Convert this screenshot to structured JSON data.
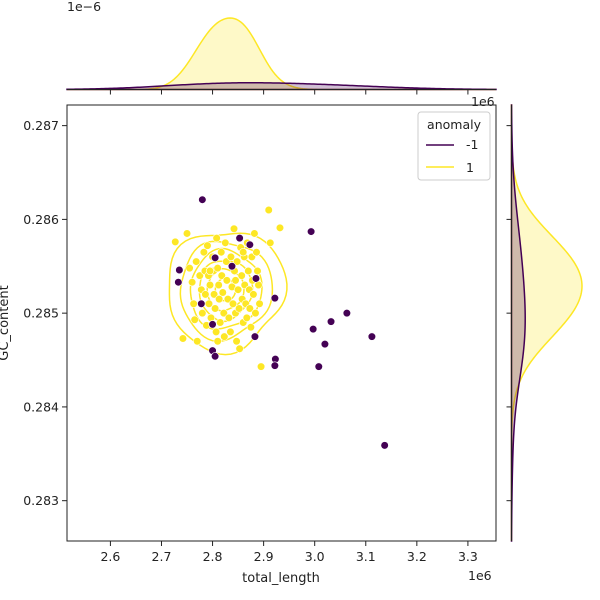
{
  "chart_data": {
    "type": "scatter",
    "xlabel": "total_length",
    "ylabel": "GC_content",
    "x_offset_label": "1e6",
    "y_offset_label": "",
    "top_marginal_offset_label": "1e−6",
    "right_marginal_offset_label": "1e6",
    "xlim": [
      2.515,
      3.355
    ],
    "ylim": [
      0.28257,
      0.28722
    ],
    "x_ticks": [
      "2.6",
      "2.7",
      "2.8",
      "2.9",
      "3.0",
      "3.1",
      "3.2",
      "3.3"
    ],
    "x_tick_values": [
      2.6,
      2.7,
      2.8,
      2.9,
      3.0,
      3.1,
      3.2,
      3.3
    ],
    "y_ticks": [
      "0.283",
      "0.284",
      "0.285",
      "0.286",
      "0.287"
    ],
    "y_tick_values": [
      0.283,
      0.284,
      0.285,
      0.286,
      0.287
    ],
    "grid": false,
    "legend": {
      "title": "anomaly",
      "placement": "top-right",
      "entries": [
        {
          "label": "-1",
          "color": "#440154"
        },
        {
          "label": "1",
          "color": "#fde725"
        }
      ]
    },
    "series": [
      {
        "name": "-1",
        "color": "#440154",
        "points": [
          [
            2.78,
            0.28621
          ],
          [
            2.735,
            0.28546
          ],
          [
            2.733,
            0.28533
          ],
          [
            2.778,
            0.2851
          ],
          [
            2.8,
            0.28488
          ],
          [
            2.8,
            0.2846
          ],
          [
            2.805,
            0.28454
          ],
          [
            2.805,
            0.28559
          ],
          [
            2.838,
            0.2855
          ],
          [
            2.853,
            0.2858
          ],
          [
            2.873,
            0.28573
          ],
          [
            2.885,
            0.28537
          ],
          [
            2.883,
            0.28475
          ],
          [
            2.922,
            0.28516
          ],
          [
            2.923,
            0.28451
          ],
          [
            2.922,
            0.28444
          ],
          [
            2.993,
            0.28587
          ],
          [
            2.997,
            0.28483
          ],
          [
            3.008,
            0.28443
          ],
          [
            3.02,
            0.28467
          ],
          [
            3.032,
            0.28491
          ],
          [
            3.063,
            0.285
          ],
          [
            3.112,
            0.28475
          ],
          [
            3.137,
            0.28359
          ]
        ]
      },
      {
        "name": "1",
        "color": "#fde725",
        "points": [
          [
            2.727,
            0.28576
          ],
          [
            2.742,
            0.28473
          ],
          [
            2.75,
            0.28585
          ],
          [
            2.755,
            0.28548
          ],
          [
            2.76,
            0.28533
          ],
          [
            2.763,
            0.2851
          ],
          [
            2.765,
            0.28493
          ],
          [
            2.768,
            0.28555
          ],
          [
            2.77,
            0.2847
          ],
          [
            2.775,
            0.2854
          ],
          [
            2.778,
            0.28525
          ],
          [
            2.78,
            0.285
          ],
          [
            2.783,
            0.28565
          ],
          [
            2.785,
            0.28545
          ],
          [
            2.786,
            0.2852
          ],
          [
            2.788,
            0.28487
          ],
          [
            2.79,
            0.28572
          ],
          [
            2.792,
            0.2854
          ],
          [
            2.793,
            0.2851
          ],
          [
            2.795,
            0.2853
          ],
          [
            2.797,
            0.28495
          ],
          [
            2.8,
            0.2856
          ],
          [
            2.802,
            0.28545
          ],
          [
            2.803,
            0.2852
          ],
          [
            2.805,
            0.28505
          ],
          [
            2.807,
            0.2848
          ],
          [
            2.808,
            0.2858
          ],
          [
            2.81,
            0.28548
          ],
          [
            2.812,
            0.2853
          ],
          [
            2.813,
            0.28515
          ],
          [
            2.815,
            0.2849
          ],
          [
            2.817,
            0.28565
          ],
          [
            2.818,
            0.2854
          ],
          [
            2.82,
            0.28522
          ],
          [
            2.822,
            0.285
          ],
          [
            2.823,
            0.28475
          ],
          [
            2.825,
            0.28575
          ],
          [
            2.827,
            0.28555
          ],
          [
            2.828,
            0.28535
          ],
          [
            2.83,
            0.28515
          ],
          [
            2.832,
            0.28495
          ],
          [
            2.834,
            0.2848
          ],
          [
            2.836,
            0.2856
          ],
          [
            2.838,
            0.28528
          ],
          [
            2.84,
            0.2851
          ],
          [
            2.842,
            0.2859
          ],
          [
            2.843,
            0.28545
          ],
          [
            2.845,
            0.285
          ],
          [
            2.847,
            0.2847
          ],
          [
            2.848,
            0.28555
          ],
          [
            2.85,
            0.28525
          ],
          [
            2.852,
            0.28505
          ],
          [
            2.853,
            0.28462
          ],
          [
            2.855,
            0.2857
          ],
          [
            2.857,
            0.2854
          ],
          [
            2.858,
            0.28515
          ],
          [
            2.86,
            0.2849
          ],
          [
            2.862,
            0.2856
          ],
          [
            2.863,
            0.2853
          ],
          [
            2.865,
            0.2851
          ],
          [
            2.867,
            0.28495
          ],
          [
            2.868,
            0.28575
          ],
          [
            2.87,
            0.28545
          ],
          [
            2.872,
            0.28525
          ],
          [
            2.873,
            0.28505
          ],
          [
            2.875,
            0.28485
          ],
          [
            2.877,
            0.2856
          ],
          [
            2.878,
            0.28535
          ],
          [
            2.88,
            0.2852
          ],
          [
            2.882,
            0.28585
          ],
          [
            2.884,
            0.285
          ],
          [
            2.886,
            0.28565
          ],
          [
            2.888,
            0.28545
          ],
          [
            2.89,
            0.2853
          ],
          [
            2.892,
            0.2851
          ],
          [
            2.895,
            0.28443
          ],
          [
            2.91,
            0.2861
          ],
          [
            2.913,
            0.28575
          ],
          [
            2.932,
            0.28591
          ],
          [
            2.795,
            0.28545
          ],
          [
            2.81,
            0.2847
          ],
          [
            2.835,
            0.2848
          ],
          [
            2.86,
            0.28565
          ],
          [
            2.845,
            0.28535
          ]
        ]
      }
    ]
  }
}
